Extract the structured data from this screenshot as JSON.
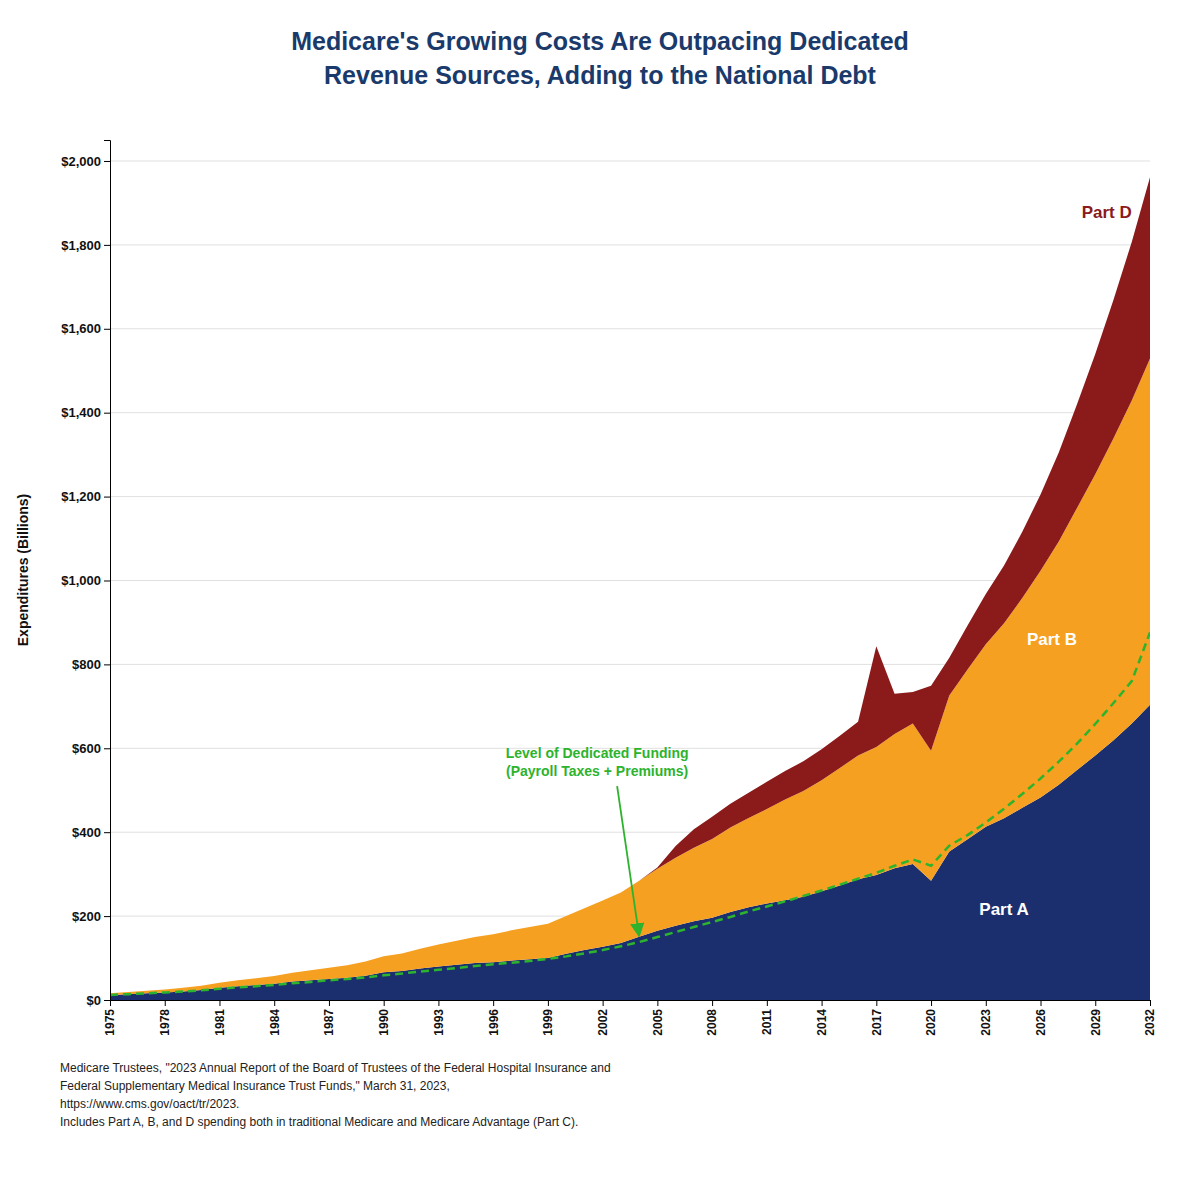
{
  "chart_data": {
    "type": "area",
    "stacked": true,
    "title": "Medicare's Growing Costs Are Outpacing Dedicated\nRevenue Sources, Adding to the National Debt",
    "y_label": "Expenditures (Billions)",
    "source": "Medicare Trustees, \"2023 Annual Report of the Board of Trustees of the Federal Hospital Insurance and\nFederal Supplementary Medical Insurance Trust Funds,\" March 31, 2023,\nhttps://www.cms.gov/oact/tr/2023.\nIncludes Part A, B, and D spending both in traditional Medicare and Medicare Advantage (Part C).",
    "grid": "y",
    "xlim": [
      1975,
      2032
    ],
    "xticks": [
      1975,
      1978,
      1981,
      1984,
      1987,
      1990,
      1993,
      1996,
      1999,
      2002,
      2005,
      2008,
      2011,
      2014,
      2017,
      2020,
      2023,
      2026,
      2029,
      2032
    ],
    "ylim": [
      0,
      2050
    ],
    "yticks": [
      {
        "value": 0,
        "label": "$0"
      },
      {
        "value": 200,
        "label": "$200"
      },
      {
        "value": 400,
        "label": "$400"
      },
      {
        "value": 600,
        "label": "$600"
      },
      {
        "value": 800,
        "label": "$800"
      },
      {
        "value": 1000,
        "label": "$1,000"
      },
      {
        "value": 1200,
        "label": "$1,200"
      },
      {
        "value": 1400,
        "label": "$1,400"
      },
      {
        "value": 1600,
        "label": "$1,600"
      },
      {
        "value": 1800,
        "label": "$1,800"
      },
      {
        "value": 2000,
        "label": "$2,000"
      }
    ],
    "x": [
      1975,
      1976,
      1977,
      1978,
      1979,
      1980,
      1981,
      1982,
      1983,
      1984,
      1985,
      1986,
      1987,
      1988,
      1989,
      1990,
      1991,
      1992,
      1993,
      1994,
      1995,
      1996,
      1997,
      1998,
      1999,
      2000,
      2001,
      2002,
      2003,
      2004,
      2005,
      2006,
      2007,
      2008,
      2009,
      2010,
      2011,
      2012,
      2013,
      2014,
      2015,
      2016,
      2017,
      2018,
      2019,
      2020,
      2021,
      2022,
      2023,
      2024,
      2025,
      2026,
      2027,
      2028,
      2029,
      2030,
      2031,
      2032
    ],
    "series": [
      {
        "name": "Part A",
        "type": "area",
        "color": "#1b2f6e",
        "values": [
          12,
          14,
          16,
          18,
          20,
          24,
          29,
          33,
          36,
          39,
          44,
          47,
          50,
          53,
          58,
          66,
          69,
          75,
          80,
          84,
          88,
          90,
          94,
          97,
          100,
          110,
          119,
          127,
          136,
          151,
          165,
          177,
          188,
          196,
          210,
          221,
          230,
          238,
          246,
          259,
          273,
          288,
          298,
          314,
          324,
          284,
          354,
          383,
          413,
          433,
          458,
          483,
          513,
          548,
          583,
          619,
          659,
          704
        ]
      },
      {
        "name": "Part B",
        "type": "area",
        "color": "#f5a020",
        "values": [
          4,
          5,
          6,
          7,
          9,
          10,
          12,
          14,
          16,
          18,
          21,
          24,
          27,
          30,
          34,
          38,
          42,
          47,
          52,
          57,
          62,
          67,
          72,
          77,
          82,
          90,
          100,
          110,
          120,
          133,
          148,
          162,
          175,
          188,
          201,
          213,
          225,
          240,
          252,
          265,
          280,
          295,
          305,
          320,
          335,
          310,
          372,
          405,
          435,
          465,
          500,
          540,
          580,
          625,
          670,
          720,
          770,
          825
        ]
      },
      {
        "name": "Part D",
        "type": "area",
        "color": "#8b1a1a",
        "values": [
          0,
          0,
          0,
          0,
          0,
          0,
          0,
          0,
          0,
          0,
          0,
          0,
          0,
          0,
          0,
          0,
          0,
          0,
          0,
          0,
          0,
          0,
          0,
          0,
          0,
          0,
          0,
          0,
          0,
          0,
          3,
          28,
          44,
          53,
          57,
          60,
          65,
          68,
          71,
          74,
          77,
          80,
          240,
          96,
          75,
          155,
          90,
          105,
          120,
          138,
          158,
          182,
          212,
          247,
          287,
          330,
          378,
          432
        ]
      },
      {
        "name": "Level of Dedicated Funding\n(Payroll Taxes + Premiums)",
        "type": "line",
        "line_style": "dashed",
        "color": "#2db32d",
        "values": [
          12,
          14,
          16,
          18,
          20,
          23,
          27,
          30,
          33,
          36,
          40,
          43,
          47,
          50,
          54,
          59,
          63,
          68,
          72,
          76,
          81,
          85,
          89,
          93,
          98,
          104,
          111,
          119,
          128,
          138,
          150,
          162,
          174,
          186,
          198,
          211,
          223,
          235,
          248,
          261,
          275,
          289,
          303,
          320,
          335,
          320,
          368,
          393,
          423,
          456,
          491,
          528,
          568,
          611,
          658,
          708,
          760,
          876
        ]
      }
    ]
  }
}
